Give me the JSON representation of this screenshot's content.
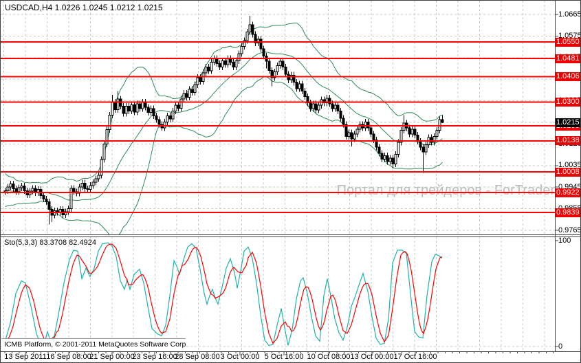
{
  "header": {
    "ohlc_readout": "USDCAD,H4 1.0226 1.0245 1.0212 1.0215"
  },
  "watermark": {
    "text": "Портал для трейдеров - ForTrader"
  },
  "status_bar": {
    "text": "ICMB Platform, © 2001-2011 MetaQuotes Software Corp."
  },
  "indicator": {
    "label": "Sto(5,3,3) 83.3708 82.4924",
    "name": "Stochastic Oscillator",
    "k_value": 83.3708,
    "d_value": 82.4924,
    "scale_max": 100,
    "scale_min": 0
  },
  "colors": {
    "background": "#ffffff",
    "grid": "#c9c9c9",
    "level_line": "#ff0000",
    "level_tag_bg": "#ee0000",
    "current_tag_bg": "#000000",
    "bollinger": "#2e8b57",
    "stoch_k": "#20b2aa",
    "stoch_d": "#ff0000",
    "candle_up_fill": "#ffffff",
    "candle_down_fill": "#000000",
    "candle_border": "#000000",
    "watermark": "#bdbdbd",
    "frame": "#404040"
  },
  "chart_data": {
    "type": "candlestick",
    "symbol": "USDCAD",
    "timeframe": "H4",
    "last_bar": {
      "open": 1.0226,
      "high": 1.0245,
      "low": 1.0212,
      "close": 1.0215
    },
    "current_price": 1.0215,
    "price_axis_ticks": [
      1.0665,
      1.0575,
      1.0485,
      1.0395,
      1.0305,
      1.0215,
      1.0125,
      1.0035,
      0.9945,
      0.9855,
      0.9765
    ],
    "red_levels": [
      1.055,
      1.0481,
      1.0406,
      1.03,
      1.02,
      1.0138,
      1.0008,
      0.9922,
      0.9839
    ],
    "time_labels": [
      "13 Sep 2011",
      "16 Sep 08:00",
      "21 Sep 00:00",
      "23 Sep 16:00",
      "28 Sep 08:00",
      "3 Oct 00:00",
      "5 Oct 16:00",
      "10 Oct 08:00",
      "13 Oct 00:00",
      "17 Oct 16:00"
    ],
    "time_label_centers": [
      36,
      99,
      162,
      224,
      286,
      348,
      412,
      477,
      540,
      603
    ],
    "ylim": [
      0.9765,
      1.0665
    ],
    "closes": [
      0.993,
      0.9945,
      0.9958,
      0.9938,
      0.9925,
      0.9942,
      0.995,
      0.993,
      0.9912,
      0.9928,
      0.994,
      0.9922,
      0.9935,
      0.991,
      0.9896,
      0.9884,
      0.9852,
      0.9828,
      0.9846,
      0.984,
      0.9852,
      0.983,
      0.9842,
      0.9855,
      0.994,
      0.9926,
      0.992,
      0.9945,
      0.9962,
      0.9938,
      0.9935,
      0.9952,
      0.9966,
      0.998,
      0.9995,
      1.006,
      1.0125,
      1.0185,
      1.0245,
      1.03,
      1.0268,
      1.0312,
      1.0282,
      1.0252,
      1.0282,
      1.0262,
      1.0288,
      1.0258,
      1.0292,
      1.0272,
      1.03,
      1.0278,
      1.0256,
      1.0272,
      1.0242,
      1.0226,
      1.0206,
      1.0192,
      1.0216,
      1.0242,
      1.023,
      1.0262,
      1.0286,
      1.0274,
      1.0312,
      1.0336,
      1.032,
      1.0352,
      1.034,
      1.0372,
      1.0402,
      1.0386,
      1.0422,
      1.0446,
      1.043,
      1.0466,
      1.0482,
      1.046,
      1.0446,
      1.0472,
      1.0456,
      1.0482,
      1.0466,
      1.0446,
      1.0472,
      1.0502,
      1.0532,
      1.0556,
      1.0592,
      1.0622,
      1.0582,
      1.0546,
      1.0562,
      1.0522,
      1.0492,
      1.047,
      1.0432,
      1.0402,
      1.0426,
      1.0452,
      1.047,
      1.0446,
      1.0416,
      1.0392,
      1.0412,
      1.0382,
      1.0356,
      1.0376,
      1.0346,
      1.0322,
      1.0296,
      1.0272,
      1.0292,
      1.0266,
      1.0286,
      1.031,
      1.0296,
      1.0316,
      1.0292,
      1.0272,
      1.0286,
      1.0262,
      1.0232,
      1.0206,
      1.0156,
      1.0172,
      1.0146,
      1.0166,
      1.0186,
      1.0206,
      1.0192,
      1.0216,
      1.0192,
      1.0166,
      1.0142,
      1.0112,
      1.0086,
      1.0062,
      1.0076,
      1.0052,
      1.0066,
      1.0042,
      1.0082,
      1.0132,
      1.0182,
      1.0212,
      1.0192,
      1.0166,
      1.0186,
      1.0162,
      1.0136,
      1.0112,
      1.0092,
      1.0122,
      1.0152,
      1.0132,
      1.0156,
      1.0182,
      1.0226,
      1.0215
    ],
    "first_open": 0.9925,
    "default_wick": 0.0013,
    "wick_overrides": {
      "16": [
        null,
        0.979
      ],
      "17": [
        null,
        0.98
      ],
      "39": [
        1.033,
        null
      ],
      "41": [
        1.0345,
        null
      ],
      "57": [
        null,
        1.018
      ],
      "89": [
        1.0659,
        null
      ],
      "95": [
        null,
        1.044
      ],
      "97": [
        null,
        1.0365
      ],
      "126": [
        null,
        1.0115
      ],
      "141": [
        null,
        1.0023
      ],
      "145": [
        1.0245,
        null
      ],
      "152": [
        null,
        1.0005
      ],
      "159": [
        1.0245,
        1.0212
      ]
    },
    "open_overrides": {
      "159": 1.0226
    },
    "bollinger": {
      "period": 20,
      "deviation": 2
    },
    "bollinger_seed": [
      1.0,
      0.998,
      0.996,
      0.999,
      0.9965,
      0.994,
      0.997,
      0.992,
      0.9945,
      0.991,
      0.993,
      0.99,
      0.988,
      0.9915,
      0.989,
      0.9925,
      0.9905,
      0.9885,
      0.991
    ],
    "stochastic": {
      "k_period": 5,
      "d_period": 3,
      "slowing": 3,
      "k_points": [
        [
          6,
          4
        ],
        [
          14,
          22
        ],
        [
          22,
          50
        ],
        [
          30,
          62
        ],
        [
          36,
          60
        ],
        [
          44,
          38
        ],
        [
          52,
          12
        ],
        [
          58,
          2
        ],
        [
          64,
          4
        ],
        [
          68,
          14
        ],
        [
          72,
          6
        ],
        [
          78,
          10
        ],
        [
          84,
          30
        ],
        [
          92,
          60
        ],
        [
          100,
          82
        ],
        [
          106,
          91
        ],
        [
          112,
          90
        ],
        [
          118,
          64
        ],
        [
          124,
          74
        ],
        [
          130,
          66
        ],
        [
          136,
          74
        ],
        [
          142,
          90
        ],
        [
          148,
          97
        ],
        [
          156,
          98
        ],
        [
          162,
          95
        ],
        [
          168,
          85
        ],
        [
          174,
          62
        ],
        [
          180,
          54
        ],
        [
          184,
          63
        ],
        [
          188,
          54
        ],
        [
          194,
          68
        ],
        [
          202,
          73
        ],
        [
          208,
          60
        ],
        [
          214,
          38
        ],
        [
          220,
          17
        ],
        [
          228,
          12
        ],
        [
          234,
          10
        ],
        [
          240,
          20
        ],
        [
          246,
          48
        ],
        [
          252,
          81
        ],
        [
          256,
          76
        ],
        [
          260,
          68
        ],
        [
          266,
          82
        ],
        [
          272,
          94
        ],
        [
          278,
          97
        ],
        [
          284,
          93
        ],
        [
          290,
          73
        ],
        [
          296,
          50
        ],
        [
          300,
          40
        ],
        [
          304,
          48
        ],
        [
          308,
          54
        ],
        [
          312,
          46
        ],
        [
          316,
          40
        ],
        [
          322,
          56
        ],
        [
          328,
          74
        ],
        [
          334,
          83
        ],
        [
          340,
          70
        ],
        [
          344,
          55
        ],
        [
          350,
          75
        ],
        [
          354,
          90
        ],
        [
          360,
          94
        ],
        [
          366,
          83
        ],
        [
          372,
          60
        ],
        [
          378,
          30
        ],
        [
          384,
          6
        ],
        [
          390,
          1
        ],
        [
          396,
          2
        ],
        [
          402,
          20
        ],
        [
          408,
          36
        ],
        [
          414,
          14
        ],
        [
          418,
          1
        ],
        [
          424,
          16
        ],
        [
          430,
          45
        ],
        [
          436,
          62
        ],
        [
          440,
          65
        ],
        [
          446,
          50
        ],
        [
          452,
          28
        ],
        [
          458,
          10
        ],
        [
          464,
          5
        ],
        [
          470,
          48
        ],
        [
          475,
          64
        ],
        [
          480,
          48
        ],
        [
          486,
          26
        ],
        [
          492,
          13
        ],
        [
          498,
          6
        ],
        [
          504,
          18
        ],
        [
          510,
          38
        ],
        [
          516,
          48
        ],
        [
          522,
          60
        ],
        [
          527,
          69
        ],
        [
          534,
          52
        ],
        [
          540,
          28
        ],
        [
          546,
          8
        ],
        [
          552,
          2
        ],
        [
          558,
          3
        ],
        [
          564,
          26
        ],
        [
          570,
          79
        ],
        [
          577,
          91
        ],
        [
          584,
          91
        ],
        [
          590,
          88
        ],
        [
          596,
          50
        ],
        [
          602,
          14
        ],
        [
          608,
          9
        ],
        [
          614,
          8
        ],
        [
          620,
          48
        ],
        [
          627,
          80
        ],
        [
          632,
          87
        ],
        [
          637,
          86
        ],
        [
          642,
          83.4
        ]
      ]
    }
  }
}
